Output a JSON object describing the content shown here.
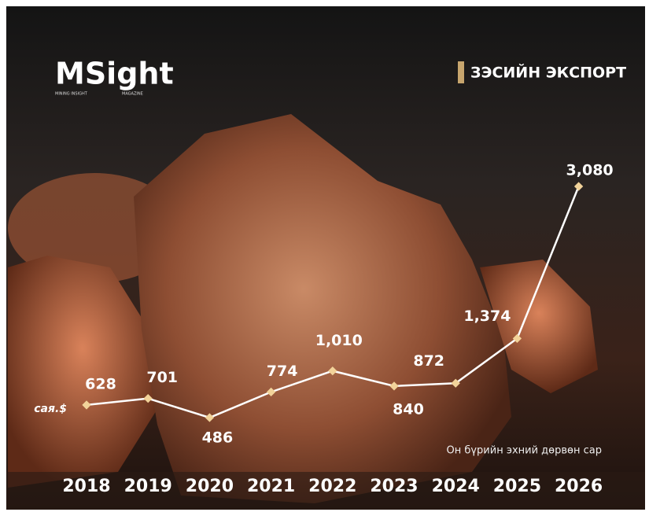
{
  "brand": {
    "logo": "MSight",
    "tagline_left": "MINING INSIGHT",
    "tagline_right": "MAGAZINE"
  },
  "header": {
    "title": "ЗЭСИЙН ЭКСПОРТ"
  },
  "chart_data": {
    "type": "line",
    "unit_label": "сая.$",
    "note": "Он бүрийн эхний дөрвөн сар",
    "categories": [
      "2018",
      "2019",
      "2020",
      "2021",
      "2022",
      "2023",
      "2024",
      "2025",
      "2026"
    ],
    "values": [
      628,
      701,
      486,
      774,
      1010,
      840,
      872,
      1374,
      3080
    ],
    "value_labels": [
      "628",
      "701",
      "486",
      "774",
      "1,010",
      "840",
      "872",
      "1,374",
      "3,080"
    ],
    "color": "#ffffff",
    "marker_color": "#f2d39a"
  }
}
